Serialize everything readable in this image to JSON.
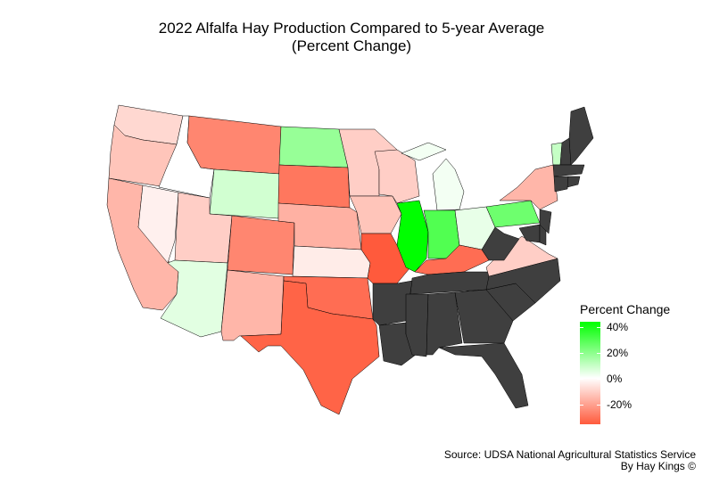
{
  "title": "2022 Alfalfa Hay Production Compared to 5-year Average",
  "subtitle": "(Percent Change)",
  "legend": {
    "title": "Percent Change",
    "ticks": [
      "40%",
      "20%",
      "0%",
      "-20%"
    ],
    "colors": {
      "high": "#00ff00",
      "mid": "#ffffff",
      "low": "#ff5a3c",
      "na": "#3f3f3f"
    }
  },
  "source": "Source: UDSA National Agricultural Statistics Service",
  "credit": "By Hay Kings ©",
  "chart_data": {
    "type": "choropleth",
    "value_label": "Percent Change",
    "scale_range": [
      -34,
      44
    ],
    "states": {
      "WA": -8,
      "OR": -12,
      "CA": -15,
      "ID": 0,
      "NV": -3,
      "MT": -25,
      "WY": 8,
      "UT": -10,
      "AZ": 5,
      "CO": -25,
      "NM": -15,
      "ND": 18,
      "SD": -28,
      "NE": -16,
      "KS": -4,
      "OK": -30,
      "TX": -32,
      "MN": -10,
      "IA": -12,
      "MO": -34,
      "WI": -10,
      "IL": 44,
      "MI": 2,
      "IN": 30,
      "OH": 4,
      "KY": -30,
      "PA": 25,
      "NY": -15,
      "VT": 10,
      "VA": -10,
      "TN": null,
      "AR": null,
      "LA": null,
      "MS": null,
      "AL": null,
      "GA": null,
      "FL": null,
      "SC": null,
      "NC": null,
      "WV": null,
      "MD": null,
      "DE": null,
      "NJ": null,
      "NH": null,
      "ME": null,
      "MA": null,
      "CT": null,
      "RI": null
    }
  }
}
